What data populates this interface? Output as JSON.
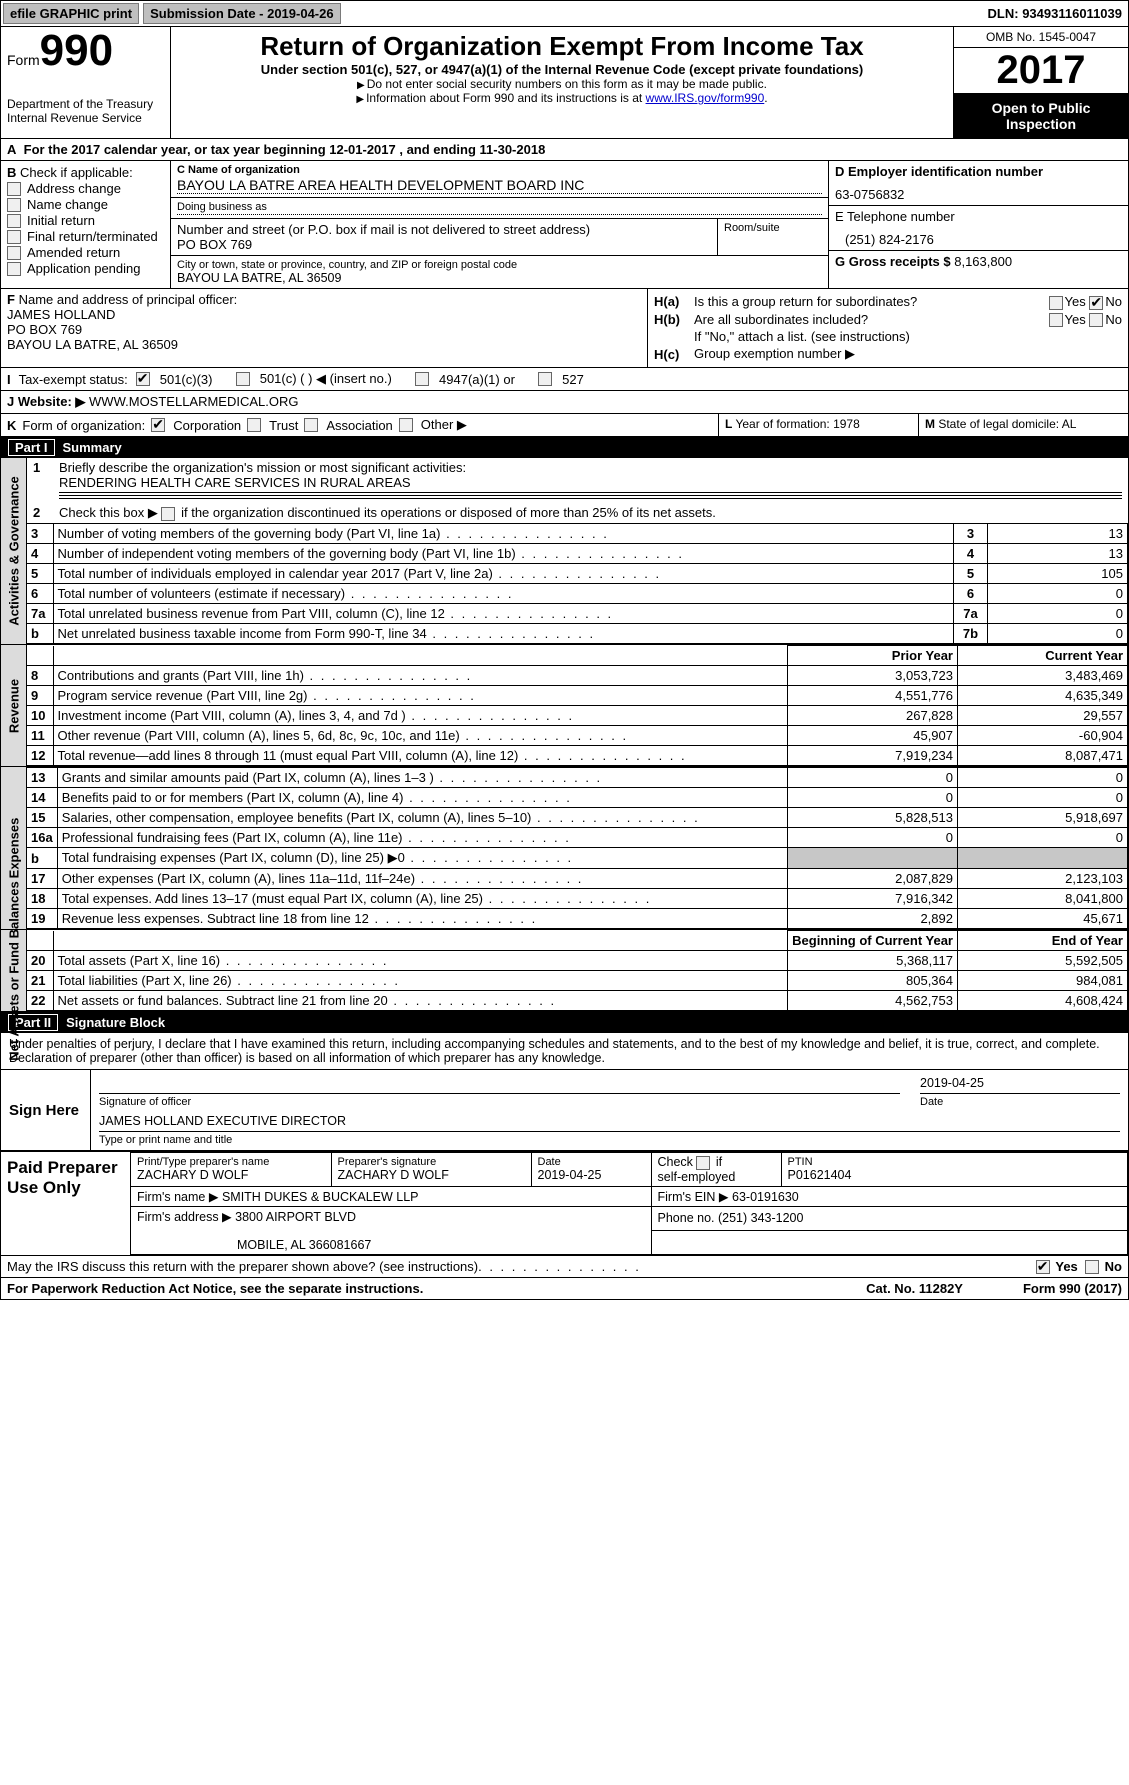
{
  "topbar": {
    "efile": "efile GRAPHIC print",
    "submission": "Submission Date - 2019-04-26",
    "dln": "DLN: 93493116011039"
  },
  "header": {
    "form_label": "Form",
    "form_number": "990",
    "dept1": "Department of the Treasury",
    "dept2": "Internal Revenue Service",
    "title": "Return of Organization Exempt From Income Tax",
    "subtitle1": "Under section 501(c), 527, or 4947(a)(1) of the Internal Revenue Code (except private foundations)",
    "subtitle2a": "Do not enter social security numbers on this form as it may be made public.",
    "subtitle2b": "Information about Form 990 and its instructions is at ",
    "link": "www.IRS.gov/form990",
    "omb": "OMB No. 1545-0047",
    "year": "2017",
    "open1": "Open to Public",
    "open2": "Inspection"
  },
  "rowA": {
    "prefix": "A",
    "text": "For the 2017 calendar year, or tax year beginning 12-01-2017   , and ending 11-30-2018"
  },
  "sectionB": {
    "label": "B",
    "intro": "Check if applicable:",
    "items": [
      "Address change",
      "Name change",
      "Initial return",
      "Final return/terminated",
      "Amended return",
      "Application pending"
    ]
  },
  "sectionC": {
    "name_lbl": "C Name of organization",
    "name_val": "BAYOU LA BATRE AREA HEALTH DEVELOPMENT BOARD INC",
    "dba_lbl": "Doing business as",
    "dba_val": "",
    "street_lbl": "Number and street (or P.O. box if mail is not delivered to street address)",
    "street_val": "PO BOX 769",
    "room_lbl": "Room/suite",
    "city_lbl": "City or town, state or province, country, and ZIP or foreign postal code",
    "city_val": "BAYOU LA BATRE, AL  36509"
  },
  "sectionD": {
    "ein_lbl": "D Employer identification number",
    "ein_val": "63-0756832",
    "phone_lbl": "E Telephone number",
    "phone_val": "(251) 824-2176",
    "gross_lbl": "G Gross receipts $ ",
    "gross_val": "8,163,800"
  },
  "sectionF": {
    "lbl": "F",
    "intro": "Name and address of principal officer:",
    "name": "JAMES HOLLAND",
    "addr1": "PO BOX 769",
    "addr2": "BAYOU LA BATRE, AL  36509"
  },
  "sectionH": {
    "ha_lbl": "H(a)",
    "ha_txt": "Is this a group return for subordinates?",
    "hb_lbl": "H(b)",
    "hb_txt": "Are all subordinates included?",
    "hb_note": "If \"No,\" attach a list. (see instructions)",
    "hc_lbl": "H(c)",
    "hc_txt": "Group exemption number ▶",
    "yes": "Yes",
    "no": "No"
  },
  "rowI": {
    "lbl": "I",
    "txt": "Tax-exempt status:",
    "opt1": "501(c)(3)",
    "opt2": "501(c) (   ) ◀ (insert no.)",
    "opt3": "4947(a)(1) or",
    "opt4": "527"
  },
  "rowJ": {
    "lbl": "J",
    "txt": "Website: ▶",
    "val": "WWW.MOSTELLARMEDICAL.ORG"
  },
  "rowK": {
    "lbl": "K",
    "txt": "Form of organization:",
    "opt1": "Corporation",
    "opt2": "Trust",
    "opt3": "Association",
    "opt4": "Other ▶",
    "l_lbl": "L",
    "l_txt": "Year of formation: 1978",
    "m_lbl": "M",
    "m_txt": "State of legal domicile: AL"
  },
  "part1": {
    "part_lbl": "Part I",
    "title": "Summary",
    "side_gov": "Activities & Governance",
    "side_rev": "Revenue",
    "side_exp": "Expenses",
    "side_net": "Net Assets or Fund Balances",
    "q1": "Briefly describe the organization's mission or most significant activities:",
    "q1_val": "RENDERING HEALTH CARE SERVICES IN RURAL AREAS",
    "q2": "Check this box ▶       if the organization discontinued its operations or disposed of more than 25% of its net assets.",
    "lines_single": [
      {
        "n": "3",
        "d": "Number of voting members of the governing body (Part VI, line 1a)",
        "k": "3",
        "v": "13"
      },
      {
        "n": "4",
        "d": "Number of independent voting members of the governing body (Part VI, line 1b)",
        "k": "4",
        "v": "13"
      },
      {
        "n": "5",
        "d": "Total number of individuals employed in calendar year 2017 (Part V, line 2a)",
        "k": "5",
        "v": "105"
      },
      {
        "n": "6",
        "d": "Total number of volunteers (estimate if necessary)",
        "k": "6",
        "v": "0"
      },
      {
        "n": "7a",
        "d": "Total unrelated business revenue from Part VIII, column (C), line 12",
        "k": "7a",
        "v": "0"
      },
      {
        "n": "b",
        "d": "Net unrelated business taxable income from Form 990-T, line 34",
        "k": "7b",
        "v": "0"
      }
    ],
    "col_prior": "Prior Year",
    "col_curr": "Current Year",
    "rev_lines": [
      {
        "n": "8",
        "d": "Contributions and grants (Part VIII, line 1h)",
        "p": "3,053,723",
        "c": "3,483,469"
      },
      {
        "n": "9",
        "d": "Program service revenue (Part VIII, line 2g)",
        "p": "4,551,776",
        "c": "4,635,349"
      },
      {
        "n": "10",
        "d": "Investment income (Part VIII, column (A), lines 3, 4, and 7d )",
        "p": "267,828",
        "c": "29,557"
      },
      {
        "n": "11",
        "d": "Other revenue (Part VIII, column (A), lines 5, 6d, 8c, 9c, 10c, and 11e)",
        "p": "45,907",
        "c": "-60,904"
      },
      {
        "n": "12",
        "d": "Total revenue—add lines 8 through 11 (must equal Part VIII, column (A), line 12)",
        "p": "7,919,234",
        "c": "8,087,471"
      }
    ],
    "exp_lines": [
      {
        "n": "13",
        "d": "Grants and similar amounts paid (Part IX, column (A), lines 1–3 )",
        "p": "0",
        "c": "0"
      },
      {
        "n": "14",
        "d": "Benefits paid to or for members (Part IX, column (A), line 4)",
        "p": "0",
        "c": "0"
      },
      {
        "n": "15",
        "d": "Salaries, other compensation, employee benefits (Part IX, column (A), lines 5–10)",
        "p": "5,828,513",
        "c": "5,918,697"
      },
      {
        "n": "16a",
        "d": "Professional fundraising fees (Part IX, column (A), line 11e)",
        "p": "0",
        "c": "0"
      },
      {
        "n": "b",
        "d": "Total fundraising expenses (Part IX, column (D), line 25) ▶0",
        "p": "SHADED",
        "c": "SHADED"
      },
      {
        "n": "17",
        "d": "Other expenses (Part IX, column (A), lines 11a–11d, 11f–24e)",
        "p": "2,087,829",
        "c": "2,123,103"
      },
      {
        "n": "18",
        "d": "Total expenses. Add lines 13–17 (must equal Part IX, column (A), line 25)",
        "p": "7,916,342",
        "c": "8,041,800"
      },
      {
        "n": "19",
        "d": "Revenue less expenses. Subtract line 18 from line 12",
        "p": "2,892",
        "c": "45,671"
      }
    ],
    "col_begin": "Beginning of Current Year",
    "col_end": "End of Year",
    "net_lines": [
      {
        "n": "20",
        "d": "Total assets (Part X, line 16)",
        "p": "5,368,117",
        "c": "5,592,505"
      },
      {
        "n": "21",
        "d": "Total liabilities (Part X, line 26)",
        "p": "805,364",
        "c": "984,081"
      },
      {
        "n": "22",
        "d": "Net assets or fund balances. Subtract line 21 from line 20",
        "p": "4,562,753",
        "c": "4,608,424"
      }
    ]
  },
  "part2": {
    "part_lbl": "Part II",
    "title": "Signature Block",
    "intro": "Under penalties of perjury, I declare that I have examined this return, including accompanying schedules and statements, and to the best of my knowledge and belief, it is true, correct, and complete. Declaration of preparer (other than officer) is based on all information of which preparer has any knowledge.",
    "sign_here": "Sign Here",
    "sig_date": "2019-04-25",
    "sig_lbl": "Signature of officer",
    "date_lbl": "Date",
    "officer_name": "JAMES HOLLAND EXECUTIVE DIRECTOR",
    "officer_lbl": "Type or print name and title",
    "paid_lbl": "Paid Preparer Use Only",
    "prep_name_lbl": "Print/Type preparer's name",
    "prep_name": "ZACHARY D WOLF",
    "prep_sig_lbl": "Preparer's signature",
    "prep_sig": "ZACHARY D WOLF",
    "prep_date_lbl": "Date",
    "prep_date": "2019-04-25",
    "check_self": "Check        if self-employed",
    "ptin_lbl": "PTIN",
    "ptin": "P01621404",
    "firm_name_lbl": "Firm's name      ▶",
    "firm_name": "SMITH DUKES & BUCKALEW LLP",
    "firm_ein_lbl": "Firm's EIN ▶",
    "firm_ein": "63-0191630",
    "firm_addr_lbl": "Firm's address ▶",
    "firm_addr1": "3800 AIRPORT BLVD",
    "firm_addr2": "MOBILE, AL  366081667",
    "firm_phone_lbl": "Phone no.",
    "firm_phone": "(251) 343-1200"
  },
  "footer": {
    "discuss": "May the IRS discuss this return with the preparer shown above? (see instructions)",
    "yes": "Yes",
    "no": "No",
    "paperwork": "For Paperwork Reduction Act Notice, see the separate instructions.",
    "cat": "Cat. No. 11282Y",
    "formver": "Form 990 (2017)"
  },
  "colors": {
    "black": "#000000",
    "gray_bg": "#dcdcdc",
    "btn_gray": "#bfbfbf",
    "link": "#0000cd"
  }
}
